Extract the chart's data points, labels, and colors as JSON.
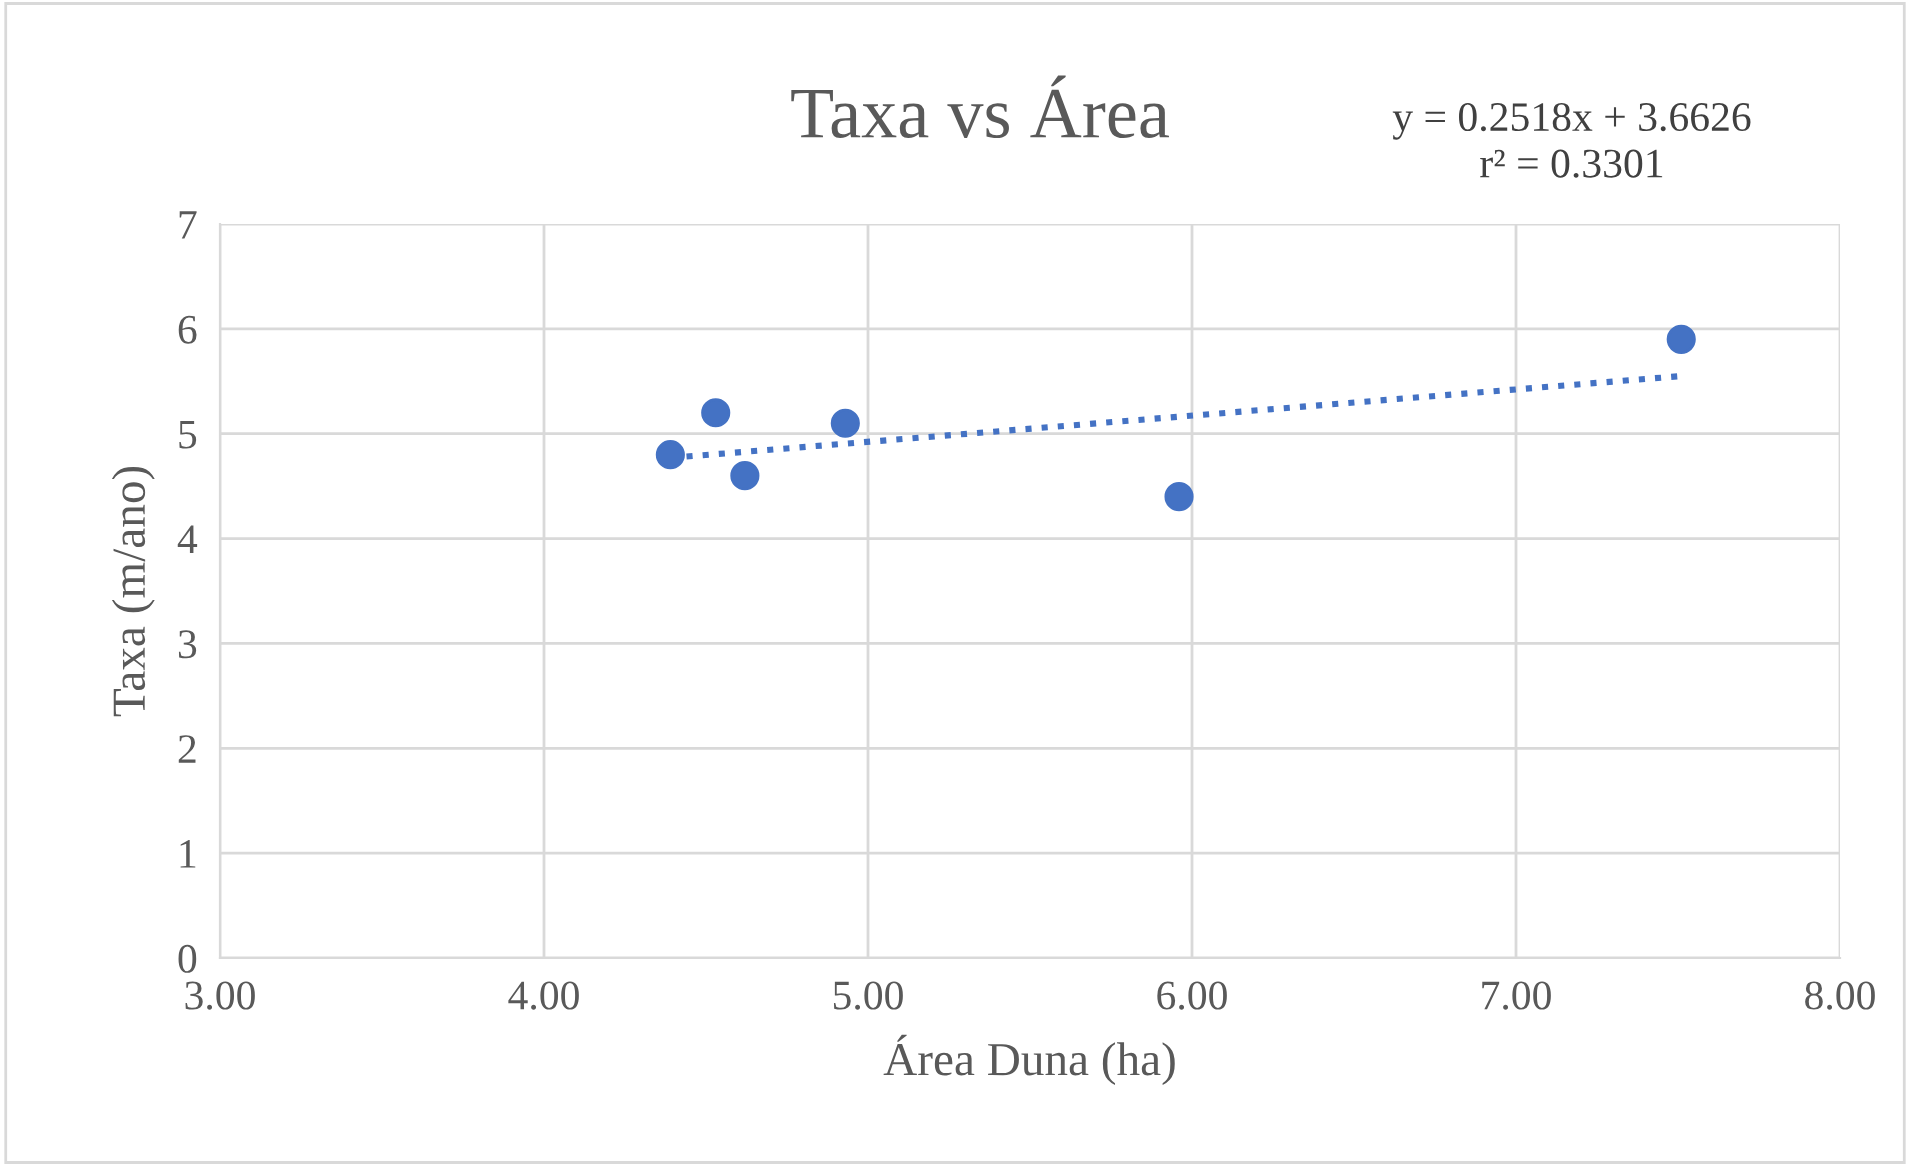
{
  "chart_data": {
    "type": "scatter",
    "title": "Taxa vs Área",
    "xlabel": "Área Duna (ha)",
    "ylabel": "Taxa (m/ano)",
    "x": [
      4.39,
      4.53,
      4.62,
      4.93,
      5.96,
      7.51
    ],
    "series": [
      {
        "color": "#4472c4",
        "values": [
          4.8,
          5.2,
          4.6,
          5.1,
          4.4,
          5.9
        ],
        "marker": "circle"
      },
      {
        "type": "line",
        "color": "#4472c4",
        "x": [
          4.39,
          7.51
        ],
        "values": [
          4.77,
          5.55
        ],
        "line_style": "dotted",
        "marker": "none"
      }
    ],
    "annotations": [
      "y = 0.2518x + 3.6626\nr² = 0.3301"
    ],
    "xlim": [
      3,
      8
    ],
    "xticks": [
      {
        "value": 3,
        "label": "3.00"
      },
      {
        "value": 4,
        "label": "4.00"
      },
      {
        "value": 5,
        "label": "5.00"
      },
      {
        "value": 6,
        "label": "6.00"
      },
      {
        "value": 7,
        "label": "7.00"
      },
      {
        "value": 8,
        "label": "8.00"
      }
    ],
    "ylim": [
      0,
      7
    ],
    "yticks": [
      0,
      1,
      2,
      3,
      4,
      5,
      6,
      7
    ],
    "grid": true
  }
}
